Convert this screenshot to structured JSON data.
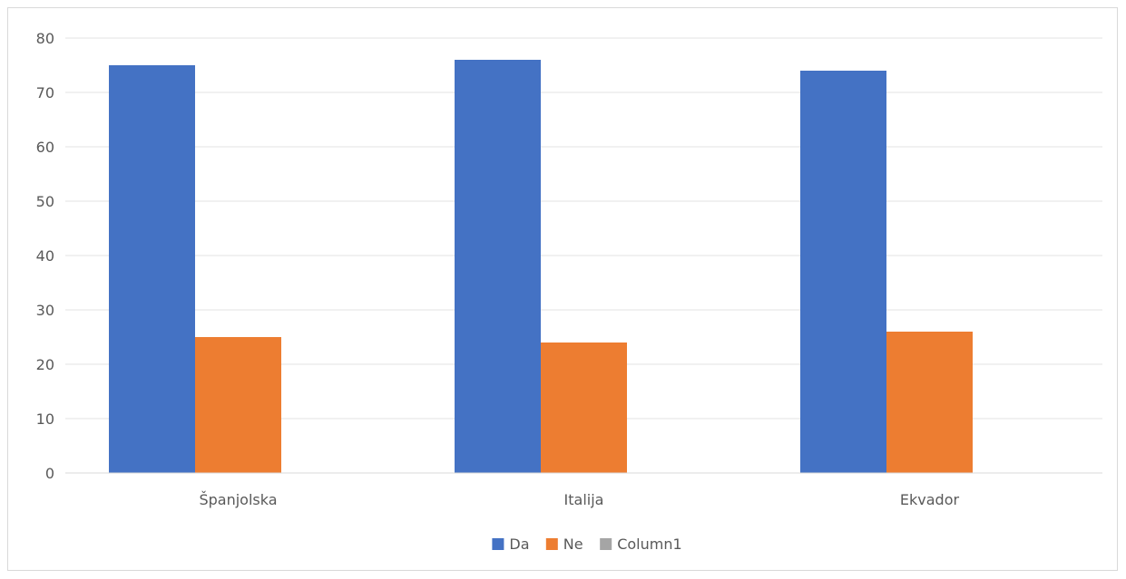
{
  "chart_data": {
    "type": "bar",
    "categories": [
      "Španjolska",
      "Italija",
      "Ekvador"
    ],
    "series": [
      {
        "name": "Da",
        "color": "#4472C4",
        "values": [
          75,
          76,
          74
        ]
      },
      {
        "name": "Ne",
        "color": "#ED7D31",
        "values": [
          25,
          24,
          26
        ]
      },
      {
        "name": "Column1",
        "color": "#A5A5A5",
        "values": [
          null,
          null,
          null
        ]
      }
    ],
    "title": "",
    "xlabel": "",
    "ylabel": "",
    "ylim": [
      0,
      80
    ],
    "yticks": [
      0,
      10,
      20,
      30,
      40,
      50,
      60,
      70,
      80
    ],
    "grid": true,
    "legend_position": "bottom"
  }
}
